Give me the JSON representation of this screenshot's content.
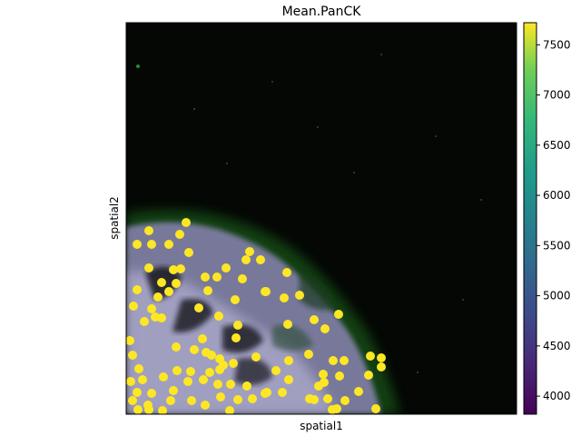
{
  "chart_data": {
    "type": "scatter",
    "title": "Mean.PanCK",
    "xlabel": "spatial1",
    "ylabel": "spatial2",
    "x_ticks_shown": false,
    "y_ticks_shown": false,
    "grid": false,
    "background": "fluorescence microscopy image (dark field, green/purple tissue in lower-left)",
    "colorbar": {
      "colormap": "viridis",
      "range": [
        3820,
        7720
      ],
      "ticks": [
        4000,
        4500,
        5000,
        5500,
        6000,
        6500,
        7000,
        7500
      ],
      "tick_labels": [
        "4000",
        "4500",
        "5000",
        "5500",
        "6000",
        "6500",
        "7000",
        "7500"
      ]
    },
    "point_color": "#fde725",
    "points": [
      [
        205,
        245
      ],
      [
        164,
        254
      ],
      [
        151,
        269
      ],
      [
        167,
        269
      ],
      [
        186,
        269
      ],
      [
        198,
        258
      ],
      [
        208,
        278
      ],
      [
        275,
        277
      ],
      [
        271,
        286
      ],
      [
        287,
        286
      ],
      [
        199,
        296
      ],
      [
        191,
        297
      ],
      [
        249,
        295
      ],
      [
        239,
        305
      ],
      [
        226,
        305
      ],
      [
        164,
        295
      ],
      [
        178,
        311
      ],
      [
        194,
        312
      ],
      [
        151,
        319
      ],
      [
        186,
        321
      ],
      [
        174,
        327
      ],
      [
        316,
        300
      ],
      [
        229,
        320
      ],
      [
        267,
        307
      ],
      [
        292,
        321
      ],
      [
        259,
        330
      ],
      [
        293,
        321
      ],
      [
        313,
        328
      ],
      [
        330,
        325
      ],
      [
        167,
        340
      ],
      [
        147,
        337
      ],
      [
        171,
        349
      ],
      [
        159,
        354
      ],
      [
        178,
        350
      ],
      [
        219,
        339
      ],
      [
        241,
        348
      ],
      [
        262,
        358
      ],
      [
        373,
        346
      ],
      [
        346,
        352
      ],
      [
        317,
        357
      ],
      [
        358,
        362
      ],
      [
        143,
        375
      ],
      [
        194,
        382
      ],
      [
        146,
        391
      ],
      [
        214,
        385
      ],
      [
        227,
        388
      ],
      [
        233,
        391
      ],
      [
        242,
        395
      ],
      [
        223,
        373
      ],
      [
        260,
        372
      ],
      [
        257,
        400
      ],
      [
        282,
        393
      ],
      [
        318,
        397
      ],
      [
        340,
        390
      ],
      [
        367,
        397
      ],
      [
        379,
        397
      ],
      [
        408,
        392
      ],
      [
        420,
        394
      ],
      [
        420,
        404
      ],
      [
        406,
        413
      ],
      [
        356,
        412
      ],
      [
        374,
        414
      ],
      [
        357,
        421
      ],
      [
        351,
        425
      ],
      [
        346,
        440
      ],
      [
        361,
        439
      ],
      [
        371,
        450
      ],
      [
        380,
        441
      ],
      [
        304,
        408
      ],
      [
        318,
        418
      ],
      [
        294,
        432
      ],
      [
        246,
        402
      ],
      [
        242,
        407
      ],
      [
        231,
        410
      ],
      [
        210,
        409
      ],
      [
        195,
        408
      ],
      [
        153,
        406
      ],
      [
        144,
        420
      ],
      [
        157,
        418
      ],
      [
        180,
        415
      ],
      [
        207,
        420
      ],
      [
        224,
        418
      ],
      [
        240,
        423
      ],
      [
        254,
        423
      ],
      [
        272,
        425
      ],
      [
        311,
        432
      ],
      [
        191,
        430
      ],
      [
        151,
        432
      ],
      [
        167,
        433
      ],
      [
        146,
        441
      ],
      [
        163,
        446
      ],
      [
        152,
        451
      ],
      [
        179,
        452
      ],
      [
        188,
        441
      ],
      [
        211,
        441
      ],
      [
        226,
        446
      ],
      [
        243,
        437
      ],
      [
        262,
        440
      ],
      [
        278,
        439
      ],
      [
        292,
        433
      ],
      [
        341,
        439
      ],
      [
        366,
        451
      ],
      [
        395,
        431
      ],
      [
        414,
        450
      ],
      [
        253,
        452
      ],
      [
        164,
        451
      ]
    ]
  }
}
